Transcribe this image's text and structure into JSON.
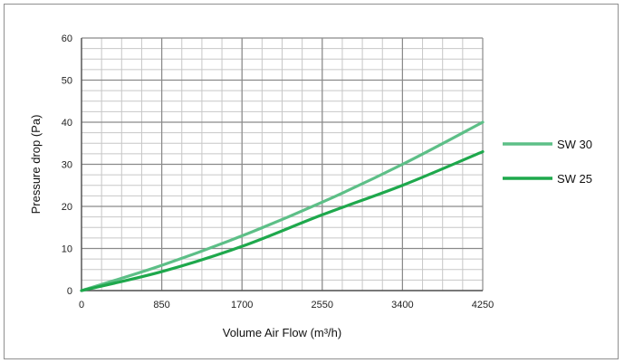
{
  "chart_data": {
    "type": "line",
    "xlabel": "Volume Air Flow (m³/h)",
    "ylabel": "Pressure drop (Pa)",
    "xlim": [
      0,
      4250
    ],
    "ylim": [
      0,
      60
    ],
    "x_ticks": [
      0,
      850,
      1700,
      2550,
      3400,
      4250
    ],
    "y_ticks": [
      0,
      10,
      20,
      30,
      40,
      50,
      60
    ],
    "grid": true,
    "legend_position": "right",
    "series": [
      {
        "name": "SW 30",
        "color": "#5dbf87",
        "x": [
          0,
          850,
          1700,
          2550,
          3400,
          4250
        ],
        "y": [
          0,
          6,
          13,
          21,
          30,
          40
        ]
      },
      {
        "name": "SW 25",
        "color": "#1ea84c",
        "x": [
          0,
          850,
          1700,
          2550,
          3400,
          4250
        ],
        "y": [
          0,
          4.5,
          10.5,
          18,
          25,
          33
        ]
      }
    ]
  }
}
